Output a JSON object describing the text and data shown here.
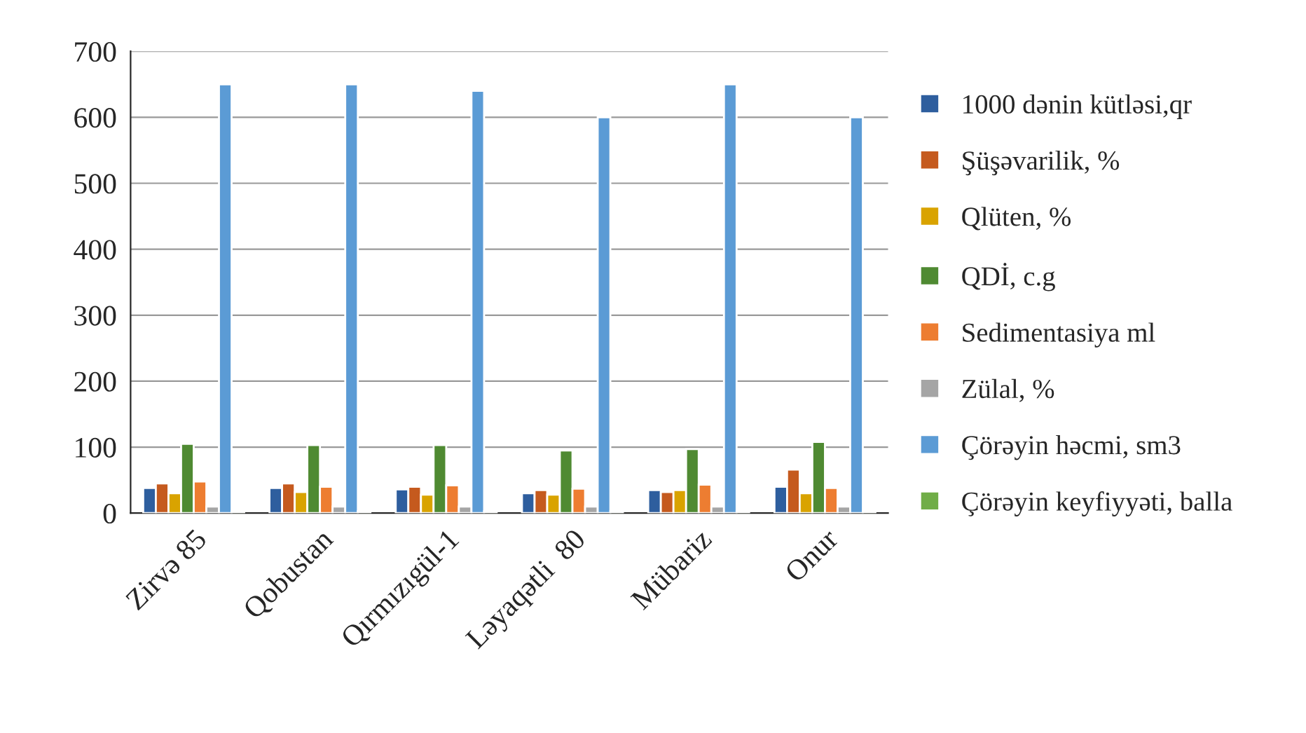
{
  "chart_data": {
    "type": "bar",
    "categories": [
      "Zirvə 85",
      "Qobustan",
      "Qırmızıgül-1",
      "Ləyaqətli  80",
      "Mübariz",
      "Onur"
    ],
    "series": [
      {
        "name": "1000 dənin kütləsi,qr",
        "color": "#2e5e9e",
        "values": [
          38,
          38,
          36,
          30,
          35,
          40
        ]
      },
      {
        "name": "Şüşəvarilik, %",
        "color": "#c55a1e",
        "values": [
          45,
          45,
          40,
          35,
          32,
          66
        ]
      },
      {
        "name": "Qlüten, %",
        "color": "#d9a300",
        "values": [
          30,
          32,
          28,
          28,
          35,
          30
        ]
      },
      {
        "name": "QDİ, c.g",
        "color": "#4f8a32",
        "values": [
          105,
          103,
          103,
          95,
          97,
          108
        ]
      },
      {
        "name": "Sedimentasiya ml",
        "color": "#ed7d31",
        "values": [
          48,
          40,
          42,
          37,
          43,
          38
        ]
      },
      {
        "name": "Zülal, %",
        "color": "#a5a5a5",
        "values": [
          10,
          10,
          10,
          10,
          10,
          10
        ]
      },
      {
        "name": "Çörəyin həcmi, sm3",
        "color": "#5b9bd5",
        "values": [
          650,
          650,
          640,
          600,
          650,
          600
        ]
      },
      {
        "name": "Çörəyin keyfiyyəti, balla",
        "color": "#70ad47",
        "values": [
          3,
          3,
          3,
          3,
          3,
          3
        ]
      }
    ],
    "ylim": [
      0,
      700
    ],
    "yticks": [
      0,
      100,
      200,
      300,
      400,
      500,
      600,
      700
    ],
    "grid": "y",
    "legend": "right"
  }
}
